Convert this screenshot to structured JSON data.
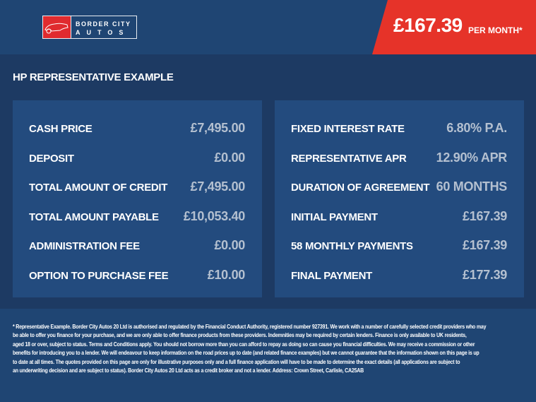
{
  "header": {
    "logo_line1": "BORDER CITY",
    "logo_line2": "AUTOS",
    "price": "£167.39",
    "price_suffix": "PER MONTH*"
  },
  "colors": {
    "header_bg": "#1f4573",
    "section_bg": "#1d3a63",
    "panel_bg": "#234b7e",
    "badge_red": "#e63329",
    "value_text": "#b4c0d0"
  },
  "section": {
    "title": "HP REPRESENTATIVE EXAMPLE"
  },
  "left_panel": [
    {
      "label": "CASH PRICE",
      "value": "£7,495.00"
    },
    {
      "label": "DEPOSIT",
      "value": "£0.00"
    },
    {
      "label": "TOTAL AMOUNT OF CREDIT",
      "value": "£7,495.00"
    },
    {
      "label": "TOTAL AMOUNT PAYABLE",
      "value": "£10,053.40"
    },
    {
      "label": "ADMINISTRATION FEE",
      "value": "£0.00"
    },
    {
      "label": "OPTION TO PURCHASE FEE",
      "value": "£10.00"
    }
  ],
  "right_panel": [
    {
      "label": "FIXED INTEREST RATE",
      "value": "6.80% P.A."
    },
    {
      "label": "REPRESENTATIVE APR",
      "value": "12.90% APR"
    },
    {
      "label": "DURATION OF AGREEMENT",
      "value": "60 MONTHS"
    },
    {
      "label": "INITIAL PAYMENT",
      "value": "£167.39"
    },
    {
      "label": "58 MONTHLY PAYMENTS",
      "value": "£167.39"
    },
    {
      "label": "FINAL PAYMENT",
      "value": "£177.39"
    }
  ],
  "footer": [
    "* Representative Example. Border City Autos 20 Ltd is authorised and regulated by the Financial Conduct Authority, registered number 927391. We work with a number of carefully selected credit providers who may",
    "be able to offer you finance for your purchase, and we are only able to offer finance products from these providers. Indemnities may be required by certain lenders. Finance is only available to UK residents,",
    "aged 18 or over, subject to status. Terms and Conditions apply. You should not borrow more than you can afford to repay as doing so can cause you financial difficulties. We may receive a commission or other",
    "benefits for introducing you to a lender. We will endeavour to keep information on the road prices up to date (and related finance examples) but we cannot guarantee that the information shown on this page is up",
    "to date at all times. The quotes provided on this page are only for illustrative purposes only and a full finance application will have to be made to determine the exact details (all applications are subject to",
    "an underwriting decision and are subject to status). Border City Autos 20 Ltd acts as a credit broker and not a lender. Address: Crown Street, Carlisle, CA25AB"
  ]
}
